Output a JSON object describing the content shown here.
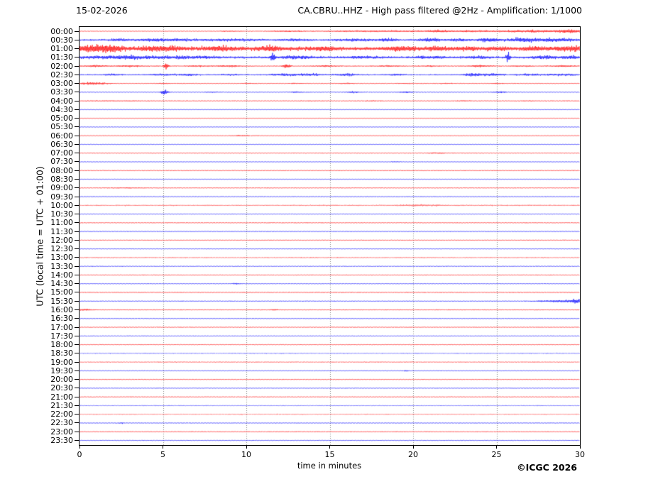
{
  "header": {
    "date": "15-02-2026",
    "title": "CA.CBRU..HHZ - High pass filtered @2Hz - Amplification: 1/1000"
  },
  "axes": {
    "x_label": "time in minutes",
    "x_ticks": [
      0,
      5,
      10,
      15,
      20,
      25,
      30
    ],
    "y_label": "UTC (local time = UTC + 01:00)"
  },
  "footer": {
    "copyright": "©ICGC 2026"
  },
  "chart_data": {
    "type": "line",
    "subtype": "helicorder-seismogram",
    "station": "CA.CBRU..HHZ",
    "filter": "High pass filtered @2Hz",
    "amplification": "1/1000",
    "minutes_per_line": 30,
    "x_range": [
      0,
      30
    ],
    "gridline_minutes": [
      5,
      10,
      15,
      20,
      25
    ],
    "grid_color": "#808080",
    "trace_colors": {
      "even_hour_rows": "#ff0000",
      "half_hour_rows": "#0000ff"
    },
    "row_key_legend": "t=UTC start time of line, c=trace color, b=baseline noise half-amplitude px, a=opacity, e=events [center_minute, half_width_minutes, extra_half_amplitude_px]",
    "rows": [
      {
        "t": "00:00",
        "c": "#ff0000",
        "b": 0.35,
        "e": [
          [
            9,
            0.5,
            0.5
          ],
          [
            12.5,
            0.8,
            0.7
          ],
          [
            18,
            2.5,
            0.9
          ],
          [
            21.5,
            0.5,
            1.2
          ],
          [
            23.5,
            0.8,
            0.9
          ],
          [
            27.5,
            2.0,
            1.4
          ],
          [
            29.5,
            0.5,
            1.6
          ]
        ]
      },
      {
        "t": "00:30",
        "c": "#0000ff",
        "b": 1.0,
        "e": [
          [
            2.5,
            0.5,
            1.2
          ],
          [
            4.5,
            0.6,
            1.6
          ],
          [
            6,
            0.5,
            1.2
          ],
          [
            9,
            1.5,
            1.0
          ],
          [
            13,
            0.5,
            1.0
          ],
          [
            16.5,
            0.8,
            1.2
          ],
          [
            18.5,
            0.4,
            1.5
          ],
          [
            21,
            0.5,
            1.8
          ],
          [
            22.7,
            0.4,
            1.4
          ],
          [
            24.5,
            0.5,
            2.2
          ],
          [
            26.5,
            0.6,
            1.6
          ],
          [
            28.2,
            1.2,
            1.8
          ]
        ]
      },
      {
        "t": "01:00",
        "c": "#ff0000",
        "b": 2.2,
        "e": [
          [
            0.8,
            0.8,
            3.5
          ],
          [
            2,
            0.6,
            2.5
          ],
          [
            4.2,
            0.5,
            2.0
          ],
          [
            5.5,
            0.6,
            2.2
          ],
          [
            8.5,
            0.8,
            2.2
          ],
          [
            11.5,
            0.6,
            2.5
          ],
          [
            14.5,
            0.6,
            1.8
          ],
          [
            19.3,
            0.7,
            2.2
          ],
          [
            21.5,
            0.5,
            1.8
          ],
          [
            23.2,
            0.4,
            1.5
          ],
          [
            25,
            0.5,
            1.5
          ],
          [
            27.3,
            0.5,
            2.0
          ],
          [
            29.3,
            0.6,
            2.5
          ]
        ]
      },
      {
        "t": "01:30",
        "c": "#0000ff",
        "b": 1.3,
        "e": [
          [
            1,
            0.8,
            1.2
          ],
          [
            2.5,
            0.7,
            1.4
          ],
          [
            4,
            0.8,
            1.2
          ],
          [
            6,
            0.8,
            1.0
          ],
          [
            7.5,
            0.6,
            1.0
          ],
          [
            11.6,
            0.08,
            6.5
          ],
          [
            13,
            0.8,
            1.5
          ],
          [
            17,
            0.8,
            1.0
          ],
          [
            21,
            0.6,
            1.2
          ],
          [
            24,
            0.5,
            1.0
          ],
          [
            25.7,
            0.08,
            7.5
          ],
          [
            27.9,
            0.6,
            1.4
          ],
          [
            29.5,
            0.4,
            1.5
          ]
        ]
      },
      {
        "t": "02:00",
        "c": "#ff0000",
        "b": 0.55,
        "e": [
          [
            1,
            0.5,
            0.9
          ],
          [
            3,
            0.5,
            0.9
          ],
          [
            5.2,
            0.1,
            4.2
          ],
          [
            7,
            0.4,
            0.6
          ],
          [
            9,
            0.5,
            0.8
          ],
          [
            12.4,
            0.15,
            2.8
          ],
          [
            14.8,
            0.5,
            0.7
          ],
          [
            18.5,
            0.5,
            0.6
          ],
          [
            21,
            0.4,
            0.6
          ],
          [
            24,
            0.5,
            0.9
          ],
          [
            26.5,
            0.4,
            0.6
          ],
          [
            29,
            0.5,
            0.9
          ]
        ]
      },
      {
        "t": "02:30",
        "c": "#0000ff",
        "b": 0.7,
        "e": [
          [
            2,
            0.4,
            0.8
          ],
          [
            5,
            0.5,
            1.0
          ],
          [
            6.5,
            0.4,
            1.0
          ],
          [
            9,
            0.4,
            0.7
          ],
          [
            12.5,
            0.8,
            1.2
          ],
          [
            14,
            0.4,
            1.0
          ],
          [
            16,
            0.5,
            1.2
          ],
          [
            19,
            0.4,
            0.7
          ],
          [
            23.6,
            0.4,
            1.8
          ],
          [
            24.8,
            0.4,
            1.4
          ],
          [
            27,
            0.5,
            1.0
          ],
          [
            29,
            0.6,
            1.0
          ]
        ]
      },
      {
        "t": "03:00",
        "c": "#ff0000",
        "b": 0.4,
        "e": [
          [
            0.8,
            0.6,
            1.4
          ],
          [
            5,
            0.3,
            0.5
          ],
          [
            10,
            0.3,
            0.4
          ],
          [
            13,
            0.3,
            0.4
          ],
          [
            16,
            0.3,
            0.5
          ],
          [
            19.5,
            0.3,
            0.4
          ],
          [
            22,
            0.3,
            0.4
          ],
          [
            25,
            0.3,
            0.5
          ]
        ]
      },
      {
        "t": "03:30",
        "c": "#0000ff",
        "b": 0.35,
        "e": [
          [
            5.1,
            0.15,
            3.2
          ],
          [
            8,
            0.3,
            0.6
          ],
          [
            13,
            0.3,
            0.7
          ],
          [
            16.4,
            0.3,
            1.0
          ],
          [
            19.6,
            0.3,
            0.8
          ],
          [
            25.2,
            0.3,
            1.0
          ]
        ]
      },
      {
        "t": "04:00",
        "c": "#ff0000",
        "b": 0.4,
        "e": [
          [
            2,
            2,
            0.3
          ],
          [
            14,
            0.4,
            0.3
          ],
          [
            17.5,
            0.4,
            0.35
          ],
          [
            23,
            0.4,
            0.3
          ],
          [
            27,
            0.4,
            0.3
          ]
        ]
      },
      {
        "t": "04:30",
        "c": "#0000ff",
        "b": 0.3,
        "e": []
      },
      {
        "t": "05:00",
        "c": "#ff0000",
        "b": 0.3,
        "e": []
      },
      {
        "t": "05:30",
        "c": "#0000ff",
        "b": 0.3,
        "e": []
      },
      {
        "t": "06:00",
        "c": "#ff0000",
        "b": 0.35,
        "e": [
          [
            9.7,
            0.4,
            0.5
          ]
        ]
      },
      {
        "t": "06:30",
        "c": "#0000ff",
        "b": 0.3,
        "e": []
      },
      {
        "t": "07:00",
        "c": "#ff0000",
        "b": 0.4,
        "e": [
          [
            21.5,
            0.5,
            0.5
          ]
        ]
      },
      {
        "t": "07:30",
        "c": "#0000ff",
        "b": 0.3,
        "e": [
          [
            19,
            0.2,
            0.5
          ]
        ]
      },
      {
        "t": "08:00",
        "c": "#ff0000",
        "b": 0.4,
        "e": []
      },
      {
        "t": "08:30",
        "c": "#0000ff",
        "b": 0.3,
        "e": []
      },
      {
        "t": "09:00",
        "c": "#ff0000",
        "b": 0.4,
        "e": [
          [
            2.8,
            0.7,
            0.4
          ]
        ]
      },
      {
        "t": "09:30",
        "c": "#0000ff",
        "b": 0.35,
        "e": []
      },
      {
        "t": "10:00",
        "c": "#ff0000",
        "b": 0.75,
        "a": 0.55,
        "e": [
          [
            20.5,
            1.0,
            0.6
          ]
        ]
      },
      {
        "t": "10:30",
        "c": "#0000ff",
        "b": 0.35,
        "e": []
      },
      {
        "t": "11:00",
        "c": "#ff0000",
        "b": 0.4,
        "e": []
      },
      {
        "t": "11:30",
        "c": "#0000ff",
        "b": 0.35,
        "e": []
      },
      {
        "t": "12:00",
        "c": "#ff0000",
        "b": 0.4,
        "e": []
      },
      {
        "t": "12:30",
        "c": "#0000ff",
        "b": 0.35,
        "e": []
      },
      {
        "t": "13:00",
        "c": "#ff0000",
        "b": 0.65,
        "a": 0.55,
        "e": []
      },
      {
        "t": "13:30",
        "c": "#0000ff",
        "b": 0.4,
        "e": []
      },
      {
        "t": "14:00",
        "c": "#ff0000",
        "b": 0.45,
        "e": []
      },
      {
        "t": "14:30",
        "c": "#0000ff",
        "b": 0.35,
        "e": [
          [
            9.4,
            0.15,
            0.9
          ]
        ]
      },
      {
        "t": "15:00",
        "c": "#ff0000",
        "b": 0.45,
        "e": []
      },
      {
        "t": "15:30",
        "c": "#0000ff",
        "b": 0.4,
        "e": [
          [
            29,
            1.0,
            1.2
          ],
          [
            29.8,
            0.3,
            1.5
          ]
        ]
      },
      {
        "t": "16:00",
        "c": "#ff0000",
        "b": 0.5,
        "e": [
          [
            0.3,
            0.3,
            1.0
          ],
          [
            11.7,
            0.12,
            0.9
          ]
        ]
      },
      {
        "t": "16:30",
        "c": "#0000ff",
        "b": 0.35,
        "e": []
      },
      {
        "t": "17:00",
        "c": "#ff0000",
        "b": 0.4,
        "e": []
      },
      {
        "t": "17:30",
        "c": "#0000ff",
        "b": 0.35,
        "e": []
      },
      {
        "t": "18:00",
        "c": "#ff0000",
        "b": 0.4,
        "e": []
      },
      {
        "t": "18:30",
        "c": "#0000ff",
        "b": 0.7,
        "a": 0.5,
        "e": []
      },
      {
        "t": "19:00",
        "c": "#ff0000",
        "b": 0.5,
        "a": 0.7,
        "e": []
      },
      {
        "t": "19:30",
        "c": "#0000ff",
        "b": 0.35,
        "e": [
          [
            19.6,
            0.15,
            0.5
          ]
        ]
      },
      {
        "t": "20:00",
        "c": "#ff0000",
        "b": 0.4,
        "e": []
      },
      {
        "t": "20:30",
        "c": "#0000ff",
        "b": 0.35,
        "e": []
      },
      {
        "t": "21:00",
        "c": "#ff0000",
        "b": 0.4,
        "e": []
      },
      {
        "t": "21:30",
        "c": "#0000ff",
        "b": 0.5,
        "a": 0.6,
        "e": []
      },
      {
        "t": "22:00",
        "c": "#ff0000",
        "b": 0.65,
        "a": 0.5,
        "e": []
      },
      {
        "t": "22:30",
        "c": "#0000ff",
        "b": 0.35,
        "e": [
          [
            2.5,
            0.12,
            0.8
          ]
        ]
      },
      {
        "t": "23:00",
        "c": "#ff0000",
        "b": 0.45,
        "e": []
      },
      {
        "t": "23:30",
        "c": "#0000ff",
        "b": 0.4,
        "e": []
      }
    ]
  }
}
